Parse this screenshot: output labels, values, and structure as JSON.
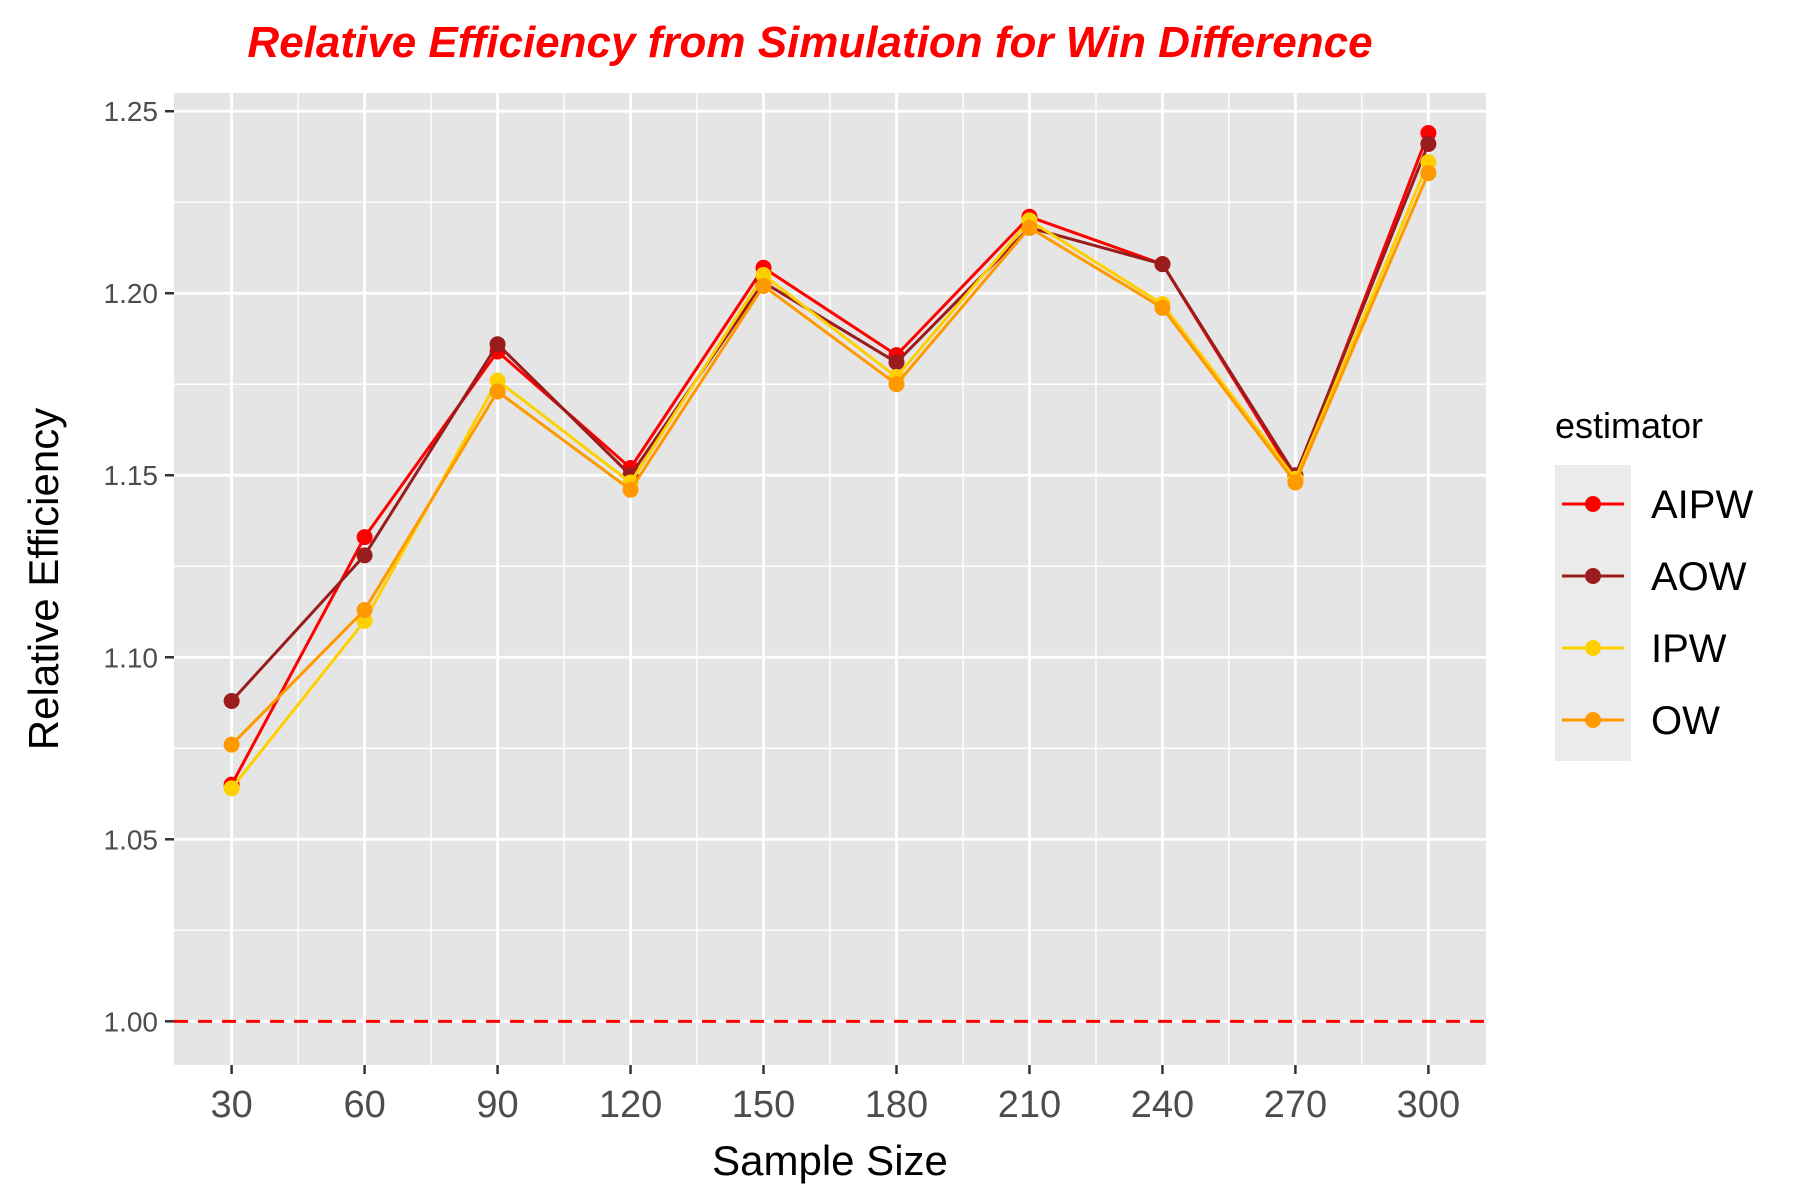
{
  "chart_data": {
    "type": "line",
    "title": "Relative Efficiency from Simulation for Win Difference",
    "title_color": "#ff0000",
    "xlabel": "Sample Size",
    "ylabel": "Relative Efficiency",
    "x": [
      30,
      60,
      90,
      120,
      150,
      180,
      210,
      240,
      270,
      300
    ],
    "x_tick_labels": [
      "30",
      "60",
      "90",
      "120",
      "150",
      "180",
      "210",
      "240",
      "270",
      "300"
    ],
    "y_tick_labels": [
      "1.00",
      "1.05",
      "1.10",
      "1.15",
      "1.20",
      "1.25"
    ],
    "y_ticks": [
      1.0,
      1.05,
      1.1,
      1.15,
      1.2,
      1.25
    ],
    "ylim": [
      0.988,
      1.255
    ],
    "xlim": [
      17,
      313
    ],
    "grid": true,
    "panel_background": "#e5e5e5",
    "reference_line": {
      "y": 1.0,
      "color": "#ff0000",
      "style": "dashed"
    },
    "legend": {
      "title": "estimator",
      "position": "right"
    },
    "series": [
      {
        "name": "AIPW",
        "color": "#ff0000",
        "values": [
          1.065,
          1.133,
          1.184,
          1.152,
          1.207,
          1.183,
          1.221,
          1.208,
          1.149,
          1.244
        ]
      },
      {
        "name": "AOW",
        "color": "#9b1c1c",
        "values": [
          1.088,
          1.128,
          1.186,
          1.15,
          1.203,
          1.181,
          1.218,
          1.208,
          1.15,
          1.241
        ]
      },
      {
        "name": "IPW",
        "color": "#ffd000",
        "values": [
          1.064,
          1.11,
          1.176,
          1.148,
          1.205,
          1.177,
          1.22,
          1.197,
          1.149,
          1.236
        ]
      },
      {
        "name": "OW",
        "color": "#ff9900",
        "values": [
          1.076,
          1.113,
          1.173,
          1.146,
          1.202,
          1.175,
          1.218,
          1.196,
          1.148,
          1.233
        ]
      }
    ]
  }
}
